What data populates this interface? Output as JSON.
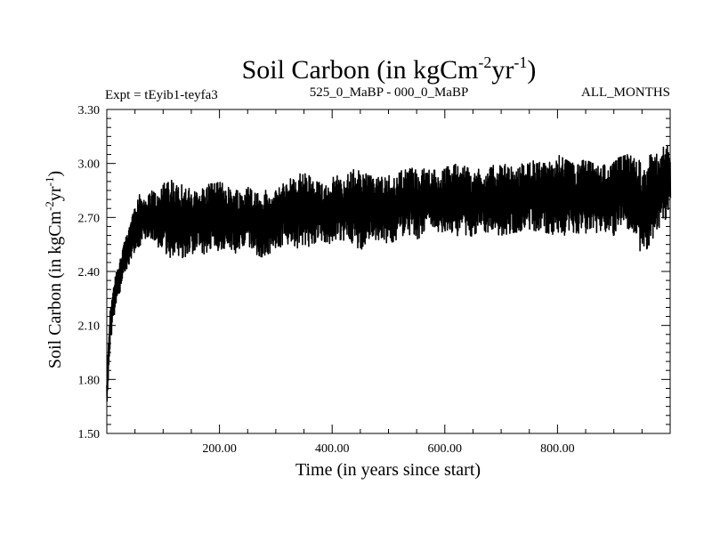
{
  "chart_data": {
    "type": "line",
    "title_main": "Soil Carbon (in kgCm",
    "title_exp1": "-2",
    "title_mid": "yr",
    "title_exp2": "-1",
    "title_end": ")",
    "subtitle_left": "Expt = tEyib1-teyfa3",
    "subtitle_center": "525_0_MaBP - 000_0_MaBP",
    "subtitle_right": "ALL_MONTHS",
    "xlabel": "Time (in years since start)",
    "ylabel_main": "Soil Carbon (in kgCm",
    "ylabel_exp1": "-2",
    "ylabel_mid": "yr",
    "ylabel_exp2": "-1",
    "ylabel_end": ")",
    "xlim": [
      0,
      1000
    ],
    "ylim": [
      1.5,
      3.3
    ],
    "x_ticks": [
      {
        "value": 200,
        "label": "200.00"
      },
      {
        "value": 400,
        "label": "400.00"
      },
      {
        "value": 600,
        "label": "600.00"
      },
      {
        "value": 800,
        "label": "800.00"
      }
    ],
    "y_ticks": [
      {
        "value": 1.5,
        "label": "1.50"
      },
      {
        "value": 1.8,
        "label": "1.80"
      },
      {
        "value": 2.1,
        "label": "2.10"
      },
      {
        "value": 2.4,
        "label": "2.40"
      },
      {
        "value": 2.7,
        "label": "2.70"
      },
      {
        "value": 3.0,
        "label": "3.00"
      },
      {
        "value": 3.3,
        "label": "3.30"
      }
    ],
    "series": [
      {
        "name": "Soil Carbon",
        "color": "#000000",
        "x": [
          0,
          5,
          10,
          20,
          30,
          40,
          50,
          60,
          70,
          80,
          90,
          100,
          125,
          150,
          175,
          200,
          225,
          250,
          275,
          300,
          325,
          350,
          375,
          400,
          425,
          450,
          475,
          500,
          525,
          550,
          575,
          600,
          625,
          650,
          675,
          700,
          725,
          750,
          775,
          800,
          825,
          850,
          875,
          900,
          925,
          950,
          975,
          1000
        ],
        "y_min": [
          1.66,
          1.95,
          2.1,
          2.25,
          2.35,
          2.45,
          2.52,
          2.55,
          2.58,
          2.55,
          2.52,
          2.5,
          2.45,
          2.5,
          2.48,
          2.52,
          2.5,
          2.52,
          2.48,
          2.52,
          2.55,
          2.5,
          2.58,
          2.55,
          2.58,
          2.52,
          2.58,
          2.55,
          2.6,
          2.58,
          2.62,
          2.62,
          2.58,
          2.6,
          2.62,
          2.6,
          2.62,
          2.6,
          2.62,
          2.6,
          2.58,
          2.6,
          2.62,
          2.6,
          2.62,
          2.48,
          2.62,
          2.7
        ],
        "y_max": [
          1.8,
          2.15,
          2.3,
          2.45,
          2.55,
          2.65,
          2.82,
          2.85,
          2.8,
          2.85,
          2.82,
          2.9,
          2.92,
          2.85,
          2.88,
          2.9,
          2.85,
          2.88,
          2.86,
          2.85,
          2.92,
          2.95,
          2.9,
          2.92,
          2.95,
          2.98,
          2.92,
          2.95,
          2.96,
          2.98,
          2.96,
          2.98,
          3.0,
          2.96,
          2.98,
          3.0,
          2.98,
          3.02,
          3.0,
          3.05,
          3.0,
          3.02,
          2.98,
          3.02,
          3.05,
          3.02,
          3.08,
          3.1
        ]
      }
    ]
  }
}
